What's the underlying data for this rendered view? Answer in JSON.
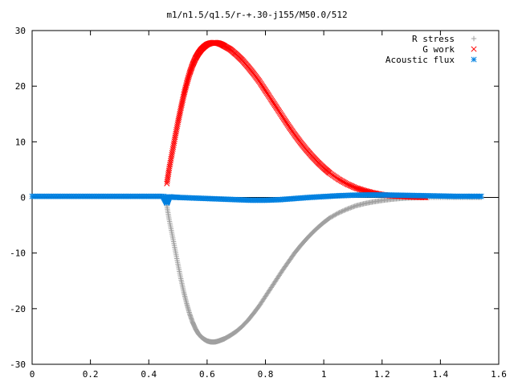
{
  "chart_data": {
    "type": "scatter",
    "title": "m1/n1.5/q1.5/r-+.30-j155/M50.0/512",
    "xlabel": "",
    "ylabel": "",
    "xlim": [
      0,
      1.6
    ],
    "ylim": [
      -30,
      30
    ],
    "x_ticks": [
      0,
      0.2,
      0.4,
      0.6,
      0.8,
      1,
      1.2,
      1.4,
      1.6
    ],
    "x_tick_labels": [
      "0",
      "0.2",
      "0.4",
      "0.6",
      "0.8",
      "1",
      "1.2",
      "1.4",
      "1.6"
    ],
    "y_ticks": [
      -30,
      -20,
      -10,
      0,
      10,
      20,
      30
    ],
    "y_tick_labels": [
      "-30",
      "-20",
      "-10",
      "0",
      "10",
      "20",
      "30"
    ],
    "grid": false,
    "legend_position": "top-right",
    "series": [
      {
        "name": "R stress",
        "marker": "plus",
        "color": "#a0a0a0",
        "x": [
          0.462,
          0.47,
          0.48,
          0.49,
          0.5,
          0.51,
          0.52,
          0.53,
          0.54,
          0.55,
          0.56,
          0.57,
          0.58,
          0.59,
          0.6,
          0.61,
          0.62,
          0.63,
          0.64,
          0.65,
          0.66,
          0.68,
          0.7,
          0.72,
          0.74,
          0.76,
          0.78,
          0.8,
          0.82,
          0.84,
          0.86,
          0.88,
          0.9,
          0.92,
          0.94,
          0.96,
          0.98,
          1.0,
          1.02,
          1.05,
          1.08,
          1.11,
          1.14,
          1.17,
          1.2,
          1.23,
          1.26,
          1.29,
          1.32,
          1.35,
          1.4,
          1.45,
          1.5,
          1.54
        ],
        "y": [
          -1.5,
          -4.0,
          -6.6,
          -9.3,
          -12.0,
          -14.6,
          -17.0,
          -19.1,
          -20.9,
          -22.4,
          -23.6,
          -24.5,
          -25.1,
          -25.5,
          -25.8,
          -25.95,
          -26.0,
          -25.95,
          -25.8,
          -25.6,
          -25.4,
          -24.8,
          -24.1,
          -23.2,
          -22.1,
          -20.8,
          -19.4,
          -17.8,
          -16.2,
          -14.6,
          -13.0,
          -11.5,
          -10.0,
          -8.7,
          -7.5,
          -6.4,
          -5.4,
          -4.5,
          -3.7,
          -2.8,
          -2.1,
          -1.5,
          -1.1,
          -0.8,
          -0.55,
          -0.35,
          -0.2,
          -0.1,
          -0.05,
          0,
          0,
          0,
          0,
          0
        ]
      },
      {
        "name": "G work",
        "marker": "cross",
        "color": "#ff0000",
        "x": [
          0.462,
          0.47,
          0.48,
          0.49,
          0.5,
          0.51,
          0.52,
          0.53,
          0.54,
          0.55,
          0.56,
          0.57,
          0.58,
          0.59,
          0.6,
          0.61,
          0.62,
          0.63,
          0.64,
          0.65,
          0.66,
          0.68,
          0.7,
          0.72,
          0.74,
          0.76,
          0.78,
          0.8,
          0.82,
          0.84,
          0.86,
          0.88,
          0.9,
          0.92,
          0.94,
          0.96,
          0.98,
          1.0,
          1.02,
          1.05,
          1.08,
          1.11,
          1.14,
          1.17,
          1.2,
          1.23,
          1.26,
          1.29,
          1.32,
          1.35
        ],
        "y": [
          2.5,
          5.2,
          8.0,
          10.8,
          13.5,
          16.0,
          18.4,
          20.5,
          22.3,
          23.8,
          25.0,
          25.9,
          26.6,
          27.1,
          27.5,
          27.7,
          27.8,
          27.8,
          27.7,
          27.5,
          27.2,
          26.6,
          25.7,
          24.7,
          23.5,
          22.2,
          20.8,
          19.2,
          17.6,
          16.0,
          14.4,
          12.8,
          11.3,
          9.9,
          8.6,
          7.4,
          6.3,
          5.3,
          4.4,
          3.3,
          2.4,
          1.7,
          1.2,
          0.8,
          0.5,
          0.3,
          0.2,
          0.1,
          0.05,
          0
        ]
      },
      {
        "name": "Acoustic flux",
        "marker": "star",
        "color": "#0080e0",
        "x": [
          0,
          0.05,
          0.1,
          0.15,
          0.2,
          0.25,
          0.3,
          0.35,
          0.4,
          0.45,
          0.462,
          0.47,
          0.5,
          0.55,
          0.6,
          0.65,
          0.7,
          0.75,
          0.8,
          0.85,
          0.9,
          0.95,
          1.0,
          1.05,
          1.1,
          1.15,
          1.2,
          1.25,
          1.3,
          1.35,
          1.4,
          1.45,
          1.5,
          1.54
        ],
        "y": [
          0.2,
          0.2,
          0.2,
          0.2,
          0.2,
          0.2,
          0.2,
          0.2,
          0.2,
          0.2,
          -1.0,
          0.1,
          0.0,
          -0.1,
          -0.2,
          -0.3,
          -0.4,
          -0.5,
          -0.5,
          -0.4,
          -0.2,
          0.0,
          0.15,
          0.3,
          0.4,
          0.45,
          0.45,
          0.4,
          0.35,
          0.3,
          0.25,
          0.2,
          0.2,
          0.2
        ]
      }
    ]
  }
}
